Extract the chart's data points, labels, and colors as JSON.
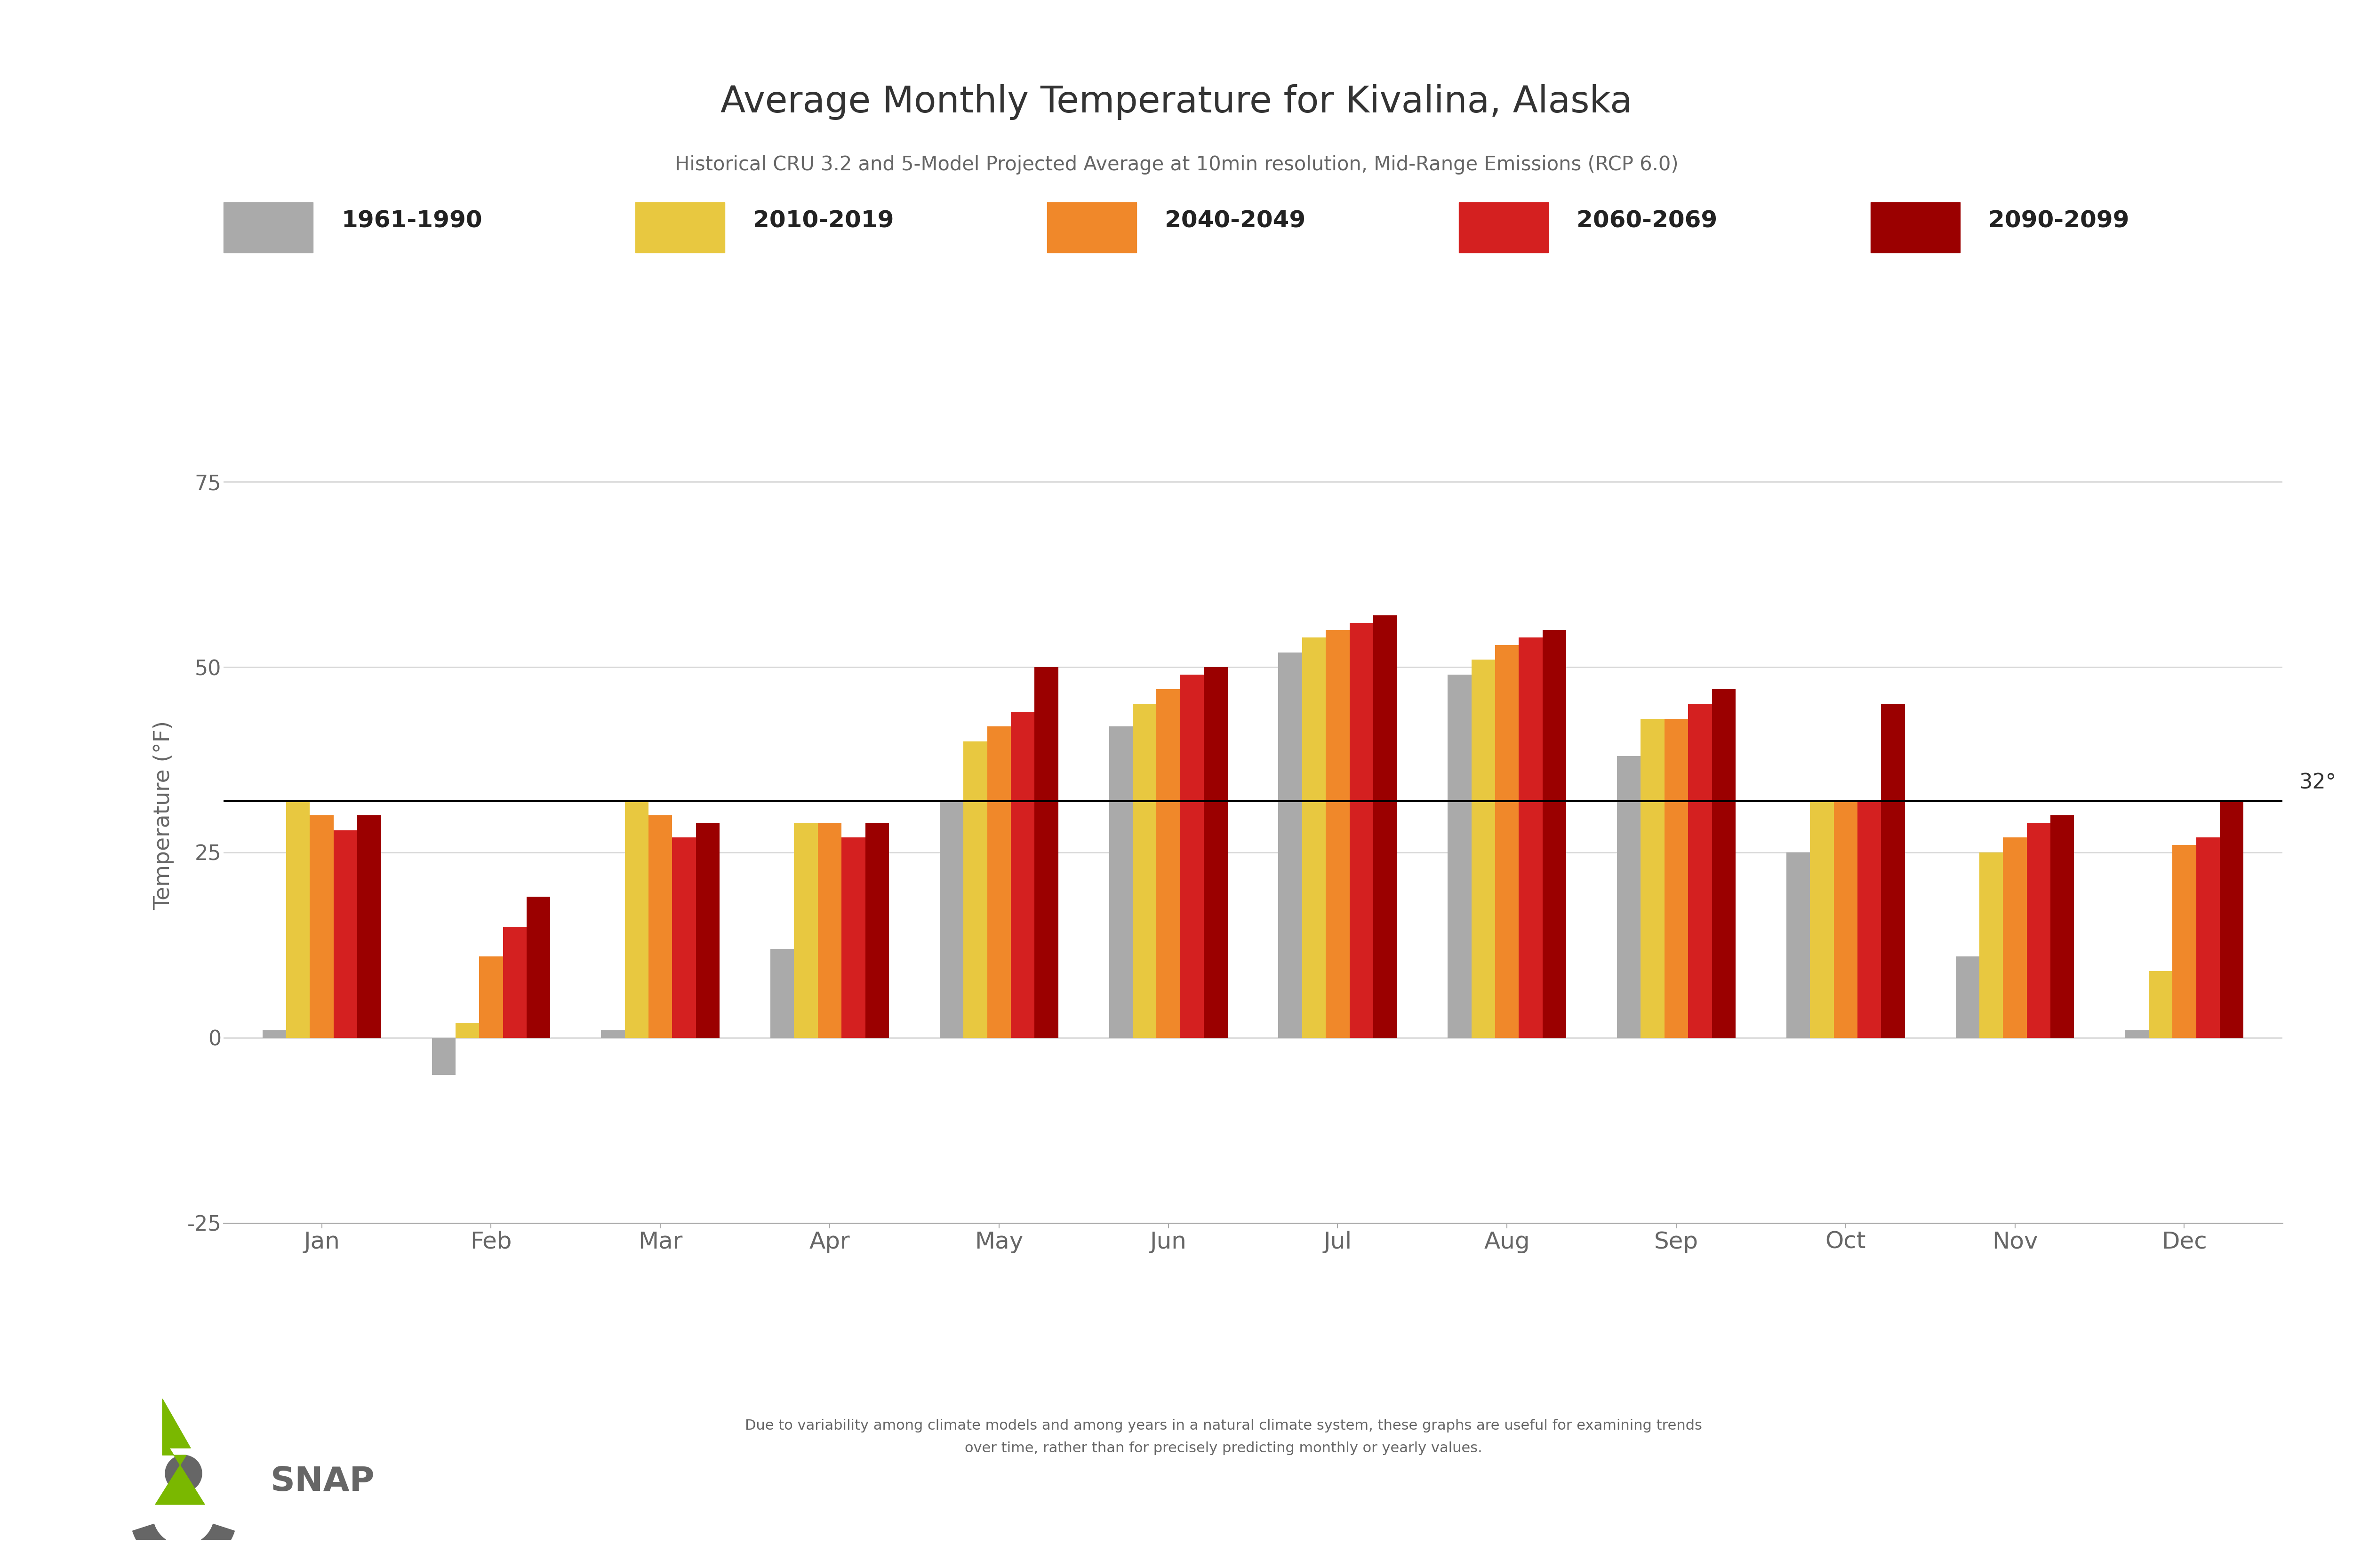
{
  "title": "Average Monthly Temperature for Kivalina, Alaska",
  "subtitle": "Historical CRU 3.2 and 5-Model Projected Average at 10min resolution, Mid-Range Emissions (RCP 6.0)",
  "ylabel": "Temperature (°F)",
  "footnote": "Due to variability among climate models and among years in a natural climate system, these graphs are useful for examining trends\nover time, rather than for precisely predicting monthly or yearly values.",
  "months": [
    "Jan",
    "Feb",
    "Mar",
    "Apr",
    "May",
    "Jun",
    "Jul",
    "Aug",
    "Sep",
    "Oct",
    "Nov",
    "Dec"
  ],
  "freezing_line": 32,
  "ylim": [
    -25,
    85
  ],
  "yticks": [
    -25,
    0,
    25,
    50,
    75
  ],
  "series": {
    "1961-1990": {
      "color": "#aaaaaa",
      "values": [
        1,
        -5,
        1,
        12,
        32,
        42,
        52,
        49,
        38,
        25,
        11,
        1
      ]
    },
    "2010-2019": {
      "color": "#e8c840",
      "values": [
        32,
        2,
        32,
        29,
        40,
        45,
        54,
        51,
        43,
        32,
        25,
        9
      ]
    },
    "2040-2049": {
      "color": "#f0882a",
      "values": [
        30,
        11,
        30,
        29,
        42,
        47,
        55,
        53,
        43,
        32,
        27,
        26
      ]
    },
    "2060-2069": {
      "color": "#d42020",
      "values": [
        28,
        15,
        27,
        27,
        44,
        49,
        56,
        54,
        45,
        32,
        29,
        27
      ]
    },
    "2090-2099": {
      "color": "#9b0000",
      "values": [
        30,
        19,
        29,
        29,
        50,
        50,
        57,
        55,
        47,
        45,
        30,
        32
      ]
    }
  },
  "legend_labels": [
    "1961-1990",
    "2010-2019",
    "2040-2049",
    "2060-2069",
    "2090-2099"
  ],
  "background_color": "#ffffff",
  "grid_color": "#d8d8d8",
  "axis_color": "#aaaaaa",
  "title_color": "#333333",
  "subtitle_color": "#666666",
  "tick_label_color": "#666666"
}
